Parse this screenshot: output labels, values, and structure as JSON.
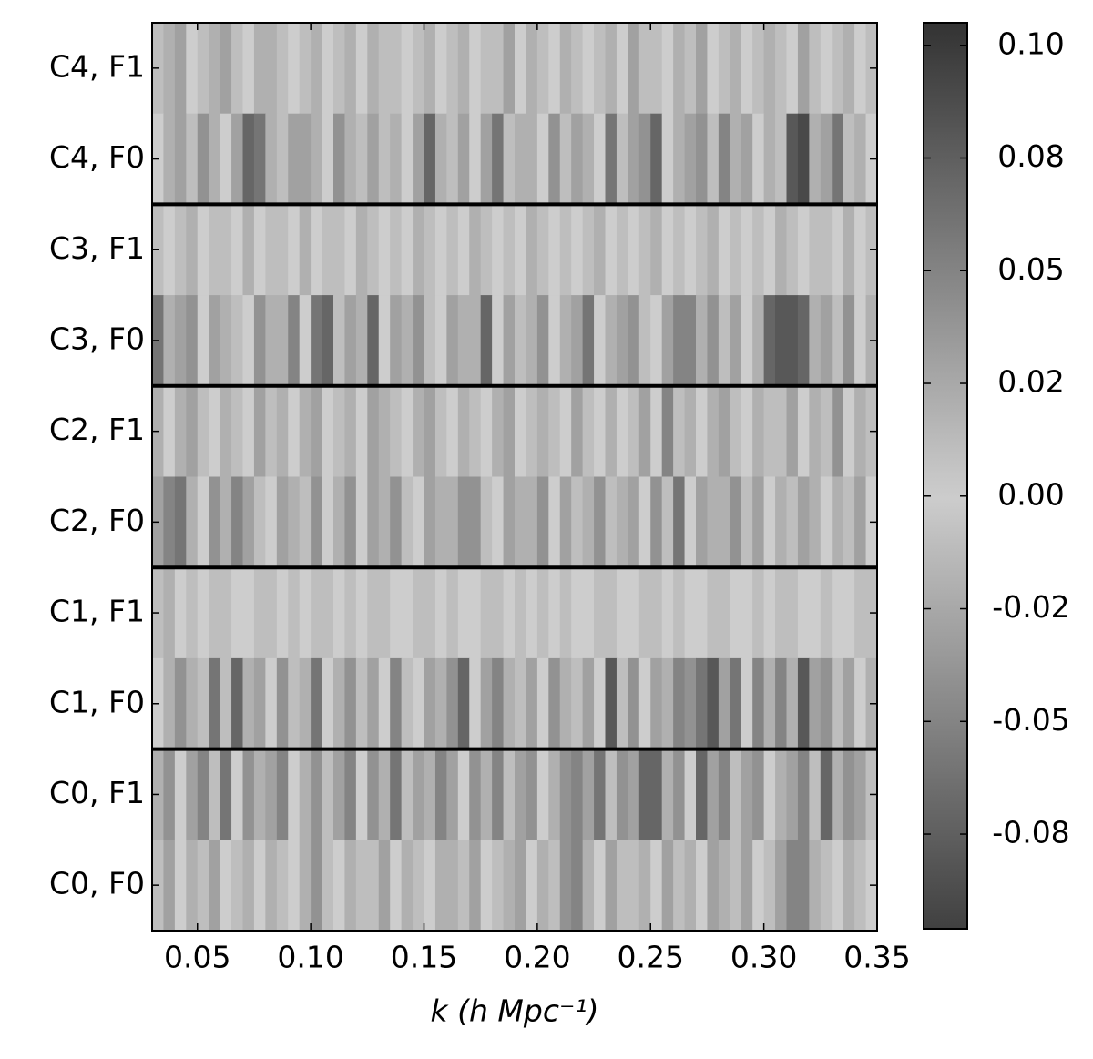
{
  "chart_data": {
    "type": "heatmap",
    "x_label": "k (h Mpc⁻¹)",
    "categories": [
      "C4, F1",
      "C4, F0",
      "C3, F1",
      "C3, F0",
      "C2, F1",
      "C2, F0",
      "C1, F1",
      "C1, F0",
      "C0, F1",
      "C0, F0"
    ],
    "xlim": [
      0.03,
      0.35
    ],
    "xticks": [
      0.05,
      {
        "value": 0.1,
        "label": "0.10"
      },
      0.15,
      {
        "value": 0.2,
        "label": "0.20"
      },
      0.25,
      {
        "value": 0.3,
        "label": "0.30"
      },
      0.35
    ],
    "colormap": [
      "#333333",
      "#cdcdcd",
      "#333333"
    ],
    "clim": [
      -0.096,
      0.105
    ],
    "cticks": [
      {
        "value": 0.1,
        "label": "0.10"
      },
      {
        "value": 0.075,
        "label": "0.08"
      },
      0.05,
      {
        "value": 0.025,
        "label": "0.02"
      },
      {
        "value": 0,
        "label": "0.00"
      },
      {
        "value": -0.025,
        "label": "-0.02"
      },
      -0.05,
      {
        "value": -0.075,
        "label": "-0.08"
      }
    ],
    "values": [
      [
        0.01,
        -0.02,
        0.03,
        0.0,
        -0.01,
        0.02,
        0.03,
        -0.01,
        0.0,
        0.02,
        -0.02,
        0.01,
        0.0,
        -0.01,
        0.02,
        0.0,
        0.01,
        -0.02,
        0.0,
        0.02,
        -0.01,
        0.01,
        0.0,
        -0.01,
        0.02,
        0.0,
        0.01,
        -0.02,
        0.0,
        0.01,
        -0.01,
        0.03,
        0.0,
        -0.02,
        0.01,
        0.0,
        0.02,
        -0.01,
        0.0,
        0.01,
        -0.02,
        0.0,
        0.03,
        0.01,
        -0.01,
        0.0,
        0.02,
        0.01,
        -0.03,
        0.0,
        0.01,
        -0.02,
        0.0,
        0.01,
        0.02,
        -0.01,
        0.0,
        0.03,
        -0.01,
        0.0,
        0.01,
        -0.02,
        0.0,
        0.01
      ],
      [
        0.0,
        0.02,
        -0.03,
        0.01,
        0.04,
        -0.02,
        0.0,
        0.03,
        0.07,
        0.06,
        -0.02,
        0.01,
        0.03,
        -0.03,
        0.02,
        0.0,
        0.04,
        -0.02,
        0.01,
        0.03,
        -0.01,
        0.02,
        0.0,
        0.03,
        0.07,
        -0.02,
        0.01,
        0.03,
        0.0,
        -0.03,
        0.06,
        0.01,
        0.02,
        -0.02,
        0.0,
        0.04,
        0.01,
        -0.03,
        0.02,
        0.0,
        0.06,
        0.01,
        -0.03,
        0.04,
        0.07,
        0.0,
        0.02,
        -0.03,
        0.04,
        0.01,
        0.05,
        -0.02,
        0.03,
        0.0,
        0.02,
        0.01,
        0.08,
        0.09,
        0.02,
        -0.03,
        0.06,
        0.01,
        -0.02,
        0.0
      ],
      [
        0.01,
        0.0,
        -0.01,
        0.02,
        0.0,
        0.01,
        -0.01,
        0.0,
        0.02,
        0.0,
        0.01,
        -0.01,
        0.0,
        0.02,
        0.0,
        -0.01,
        0.01,
        0.0,
        0.02,
        -0.01,
        0.0,
        0.01,
        0.0,
        0.02,
        -0.01,
        0.0,
        0.01,
        0.0,
        -0.02,
        0.01,
        0.0,
        0.01,
        0.0,
        0.02,
        -0.01,
        0.0,
        0.01,
        0.0,
        -0.01,
        0.02,
        0.0,
        0.01,
        0.0,
        -0.01,
        0.02,
        0.0,
        0.01,
        0.0,
        -0.01,
        0.02,
        0.0,
        0.01,
        0.0,
        -0.01,
        0.0,
        0.02,
        0.01,
        0.0,
        -0.01,
        0.01,
        0.0,
        0.02,
        0.0,
        0.01
      ],
      [
        0.06,
        0.02,
        -0.03,
        0.04,
        0.0,
        0.03,
        -0.02,
        0.01,
        0.0,
        0.04,
        -0.02,
        0.02,
        0.05,
        0.0,
        0.06,
        0.07,
        0.01,
        -0.03,
        0.02,
        0.07,
        0.0,
        0.03,
        -0.02,
        0.04,
        0.01,
        0.0,
        0.03,
        -0.02,
        0.02,
        0.07,
        0.0,
        0.03,
        0.01,
        -0.02,
        0.04,
        0.0,
        0.02,
        0.03,
        0.06,
        0.0,
        0.02,
        -0.03,
        0.04,
        0.01,
        0.0,
        0.03,
        0.05,
        0.05,
        -0.02,
        0.04,
        0.01,
        0.03,
        0.0,
        0.02,
        0.07,
        0.08,
        0.08,
        0.07,
        0.02,
        -0.03,
        0.01,
        0.04,
        0.0,
        0.02
      ],
      [
        0.02,
        0.0,
        -0.02,
        0.03,
        0.01,
        0.0,
        0.02,
        -0.01,
        0.0,
        0.03,
        0.01,
        -0.02,
        0.0,
        0.02,
        0.03,
        0.0,
        -0.01,
        0.02,
        0.0,
        0.03,
        -0.02,
        0.01,
        0.0,
        0.02,
        0.03,
        -0.01,
        0.0,
        0.02,
        0.01,
        0.0,
        -0.02,
        0.03,
        0.0,
        0.01,
        0.02,
        -0.01,
        0.0,
        0.03,
        0.01,
        0.0,
        0.02,
        0.0,
        -0.01,
        0.03,
        0.0,
        0.05,
        0.01,
        0.02,
        0.0,
        -0.02,
        0.03,
        0.01,
        0.0,
        0.02,
        0.01,
        -0.01,
        0.03,
        0.0,
        0.02,
        0.01,
        0.04,
        0.0,
        0.02,
        0.01
      ],
      [
        0.03,
        0.05,
        0.06,
        0.02,
        0.0,
        0.04,
        -0.02,
        0.05,
        0.03,
        0.01,
        0.0,
        0.03,
        -0.02,
        0.01,
        0.04,
        0.0,
        0.02,
        0.04,
        0.0,
        0.03,
        -0.02,
        0.04,
        0.01,
        0.0,
        0.03,
        0.02,
        -0.02,
        0.04,
        0.04,
        0.01,
        0.0,
        0.03,
        0.02,
        -0.02,
        0.04,
        0.0,
        0.03,
        0.01,
        0.02,
        0.04,
        -0.01,
        0.02,
        0.03,
        0.0,
        0.04,
        0.01,
        0.06,
        0.0,
        0.03,
        -0.02,
        0.02,
        0.04,
        0.01,
        0.03,
        0.0,
        0.02,
        -0.01,
        0.03,
        0.02,
        0.0,
        0.02,
        0.01,
        0.03,
        0.0
      ],
      [
        0.01,
        -0.02,
        0.0,
        0.01,
        0.0,
        -0.01,
        0.01,
        0.0,
        0.0,
        0.01,
        -0.01,
        0.0,
        0.01,
        0.0,
        -0.01,
        0.01,
        0.0,
        0.01,
        0.0,
        -0.01,
        0.01,
        0.0,
        0.0,
        0.01,
        -0.01,
        0.0,
        0.01,
        0.0,
        0.0,
        -0.01,
        0.01,
        0.0,
        0.01,
        0.0,
        -0.01,
        0.0,
        0.01,
        0.0,
        0.0,
        -0.01,
        0.01,
        0.0,
        0.0,
        0.01,
        -0.01,
        0.0,
        0.01,
        0.0,
        0.0,
        -0.01,
        0.01,
        0.0,
        0.0,
        0.01,
        0.0,
        -0.01,
        0.01,
        0.0,
        0.0,
        0.01,
        0.0,
        0.0,
        -0.01,
        0.01
      ],
      [
        0.0,
        0.02,
        0.04,
        -0.02,
        0.01,
        0.06,
        0.01,
        0.07,
        -0.02,
        0.03,
        0.0,
        0.04,
        0.01,
        -0.02,
        0.06,
        0.0,
        0.02,
        0.04,
        -0.01,
        0.03,
        0.0,
        0.05,
        0.01,
        0.0,
        0.03,
        -0.02,
        0.04,
        0.07,
        0.0,
        0.03,
        0.05,
        -0.02,
        0.01,
        0.03,
        0.0,
        0.04,
        0.02,
        -0.01,
        0.03,
        0.0,
        0.08,
        0.01,
        0.04,
        0.0,
        0.03,
        -0.02,
        0.05,
        0.04,
        0.06,
        0.08,
        0.03,
        0.06,
        0.0,
        0.05,
        0.02,
        0.05,
        -0.02,
        0.08,
        0.03,
        0.04,
        0.01,
        0.03,
        0.0,
        0.02
      ],
      [
        0.02,
        0.04,
        0.0,
        0.03,
        0.05,
        0.01,
        0.06,
        0.0,
        0.04,
        -0.02,
        0.03,
        0.05,
        0.0,
        0.02,
        0.04,
        0.01,
        0.03,
        0.05,
        0.0,
        0.04,
        0.02,
        0.06,
        0.01,
        0.03,
        -0.02,
        0.05,
        0.03,
        0.0,
        0.04,
        0.02,
        0.05,
        0.01,
        0.03,
        0.04,
        0.0,
        0.02,
        0.04,
        0.05,
        0.03,
        0.06,
        0.01,
        0.04,
        0.03,
        0.07,
        0.07,
        0.02,
        0.04,
        0.0,
        0.07,
        0.03,
        0.05,
        0.01,
        0.03,
        0.04,
        0.0,
        0.02,
        0.03,
        0.05,
        0.01,
        0.07,
        0.02,
        0.04,
        0.03,
        0.01
      ],
      [
        0.01,
        0.03,
        0.0,
        0.02,
        -0.01,
        0.03,
        0.0,
        0.01,
        0.02,
        0.0,
        -0.02,
        0.01,
        0.0,
        0.02,
        0.04,
        0.01,
        0.0,
        0.02,
        -0.01,
        0.01,
        0.03,
        0.0,
        0.02,
        0.01,
        0.0,
        -0.02,
        0.02,
        0.01,
        0.03,
        0.0,
        0.01,
        0.02,
        0.03,
        0.0,
        0.02,
        0.01,
        0.04,
        0.05,
        0.02,
        0.0,
        0.03,
        0.01,
        -0.01,
        0.02,
        0.0,
        0.03,
        0.01,
        0.02,
        0.0,
        0.03,
        0.02,
        0.01,
        0.03,
        0.0,
        0.01,
        0.03,
        0.05,
        0.05,
        0.02,
        0.01,
        0.0,
        0.02,
        0.01,
        0.0
      ]
    ]
  }
}
